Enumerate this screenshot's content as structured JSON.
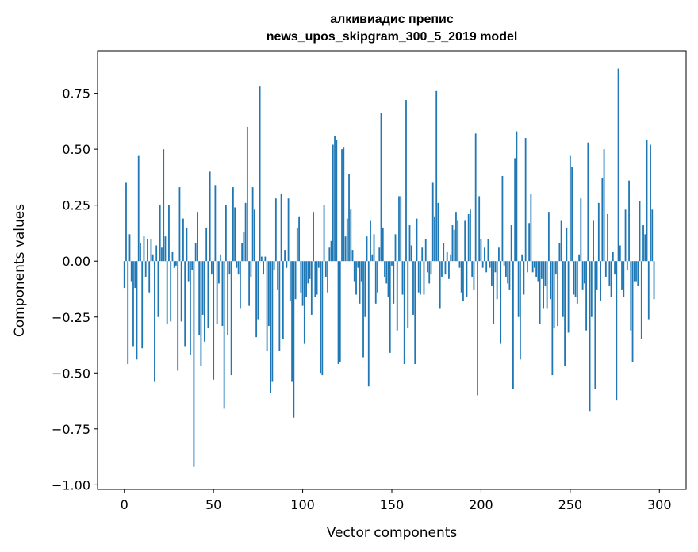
{
  "chart_data": {
    "type": "bar",
    "title_line1": "алкивиадис препис",
    "title_line2": "news_upos_skipgram_300_5_2019 model",
    "xlabel": "Vector components",
    "ylabel": "Components values",
    "xlim": [
      -15,
      315
    ],
    "ylim": [
      -1.02,
      0.94
    ],
    "xticks": [
      0,
      50,
      100,
      150,
      200,
      250,
      300
    ],
    "xtick_labels": [
      "0",
      "50",
      "100",
      "150",
      "200",
      "250",
      "300"
    ],
    "yticks": [
      -1.0,
      -0.75,
      -0.5,
      -0.25,
      0.0,
      0.25,
      0.5,
      0.75
    ],
    "ytick_labels": [
      "−1.00",
      "−0.75",
      "−0.50",
      "−0.25",
      "0.00",
      "0.25",
      "0.50",
      "0.75"
    ],
    "grid": false,
    "bar_color": "#1f77b4",
    "values": [
      -0.12,
      0.35,
      -0.46,
      0.12,
      -0.09,
      -0.38,
      -0.12,
      -0.44,
      0.47,
      0.08,
      -0.39,
      0.11,
      -0.07,
      0.1,
      -0.14,
      0.1,
      0.03,
      -0.54,
      0.07,
      -0.25,
      0.25,
      0.06,
      0.5,
      0.11,
      -0.28,
      0.25,
      -0.27,
      0.04,
      -0.03,
      -0.02,
      -0.49,
      0.33,
      -0.27,
      0.19,
      -0.38,
      0.15,
      -0.09,
      -0.42,
      -0.04,
      -0.92,
      0.08,
      0.22,
      -0.33,
      -0.47,
      -0.24,
      -0.36,
      0.15,
      -0.3,
      0.4,
      -0.06,
      -0.53,
      0.34,
      -0.28,
      -0.1,
      0.03,
      -0.29,
      -0.66,
      0.25,
      -0.33,
      -0.06,
      -0.51,
      0.33,
      0.24,
      -0.03,
      -0.06,
      -0.21,
      0.08,
      0.13,
      0.26,
      0.6,
      -0.2,
      -0.07,
      0.33,
      0.23,
      -0.34,
      -0.26,
      0.78,
      0.02,
      -0.06,
      0.02,
      -0.4,
      -0.29,
      -0.59,
      -0.54,
      -0.04,
      0.28,
      -0.13,
      -0.4,
      0.3,
      -0.35,
      0.05,
      -0.03,
      0.28,
      -0.18,
      -0.54,
      -0.7,
      -0.17,
      0.15,
      0.2,
      -0.14,
      -0.2,
      -0.37,
      -0.16,
      -0.1,
      -0.08,
      -0.24,
      0.22,
      -0.16,
      -0.15,
      -0.03,
      -0.5,
      -0.51,
      0.25,
      -0.07,
      -0.14,
      0.06,
      0.09,
      0.52,
      0.56,
      0.54,
      -0.46,
      -0.45,
      0.5,
      0.51,
      0.11,
      0.19,
      0.39,
      0.23,
      0.05,
      -0.09,
      -0.15,
      -0.03,
      -0.19,
      -0.09,
      -0.43,
      -0.25,
      0.11,
      -0.56,
      0.18,
      0.03,
      0.12,
      -0.19,
      -0.14,
      0.06,
      0.66,
      0.15,
      -0.07,
      -0.1,
      -0.16,
      -0.41,
      -0.02,
      -0.19,
      0.12,
      -0.31,
      0.29,
      0.29,
      -0.15,
      -0.46,
      0.72,
      -0.3,
      0.16,
      0.07,
      -0.24,
      -0.46,
      0.19,
      -0.14,
      -0.15,
      0.06,
      -0.15,
      0.1,
      -0.05,
      -0.1,
      -0.06,
      0.35,
      0.2,
      0.76,
      0.26,
      -0.21,
      -0.07,
      0.08,
      -0.06,
      0.04,
      -0.08,
      0.03,
      0.16,
      0.14,
      0.22,
      0.18,
      -0.03,
      -0.14,
      -0.18,
      0.18,
      -0.16,
      0.21,
      0.23,
      -0.07,
      -0.13,
      0.57,
      -0.6,
      0.29,
      0.1,
      -0.03,
      0.06,
      -0.05,
      0.1,
      -0.03,
      -0.11,
      -0.28,
      -0.05,
      -0.17,
      0.06,
      -0.37,
      0.38,
      -0.02,
      -0.07,
      -0.1,
      -0.13,
      0.16,
      -0.57,
      0.46,
      0.58,
      -0.25,
      -0.44,
      0.03,
      -0.15,
      0.55,
      -0.05,
      0.17,
      0.3,
      -0.05,
      -0.03,
      -0.07,
      -0.09,
      -0.28,
      -0.08,
      -0.21,
      -0.11,
      -0.21,
      0.22,
      -0.17,
      -0.51,
      -0.3,
      -0.06,
      -0.29,
      0.08,
      0.18,
      -0.25,
      -0.47,
      0.15,
      -0.32,
      0.47,
      0.42,
      -0.15,
      -0.16,
      -0.19,
      0.03,
      0.28,
      -0.13,
      -0.1,
      -0.31,
      0.53,
      -0.67,
      -0.25,
      0.18,
      -0.57,
      -0.13,
      0.26,
      -0.18,
      0.37,
      0.5,
      -0.07,
      0.21,
      -0.11,
      -0.16,
      0.04,
      -0.06,
      -0.62,
      0.86,
      0.07,
      -0.13,
      -0.16,
      0.23,
      -0.04,
      0.36,
      -0.31,
      -0.45,
      -0.09,
      -0.09,
      -0.11,
      0.27,
      -0.35,
      0.16,
      0.12,
      0.54,
      -0.26,
      0.52,
      0.23,
      -0.17
    ]
  }
}
